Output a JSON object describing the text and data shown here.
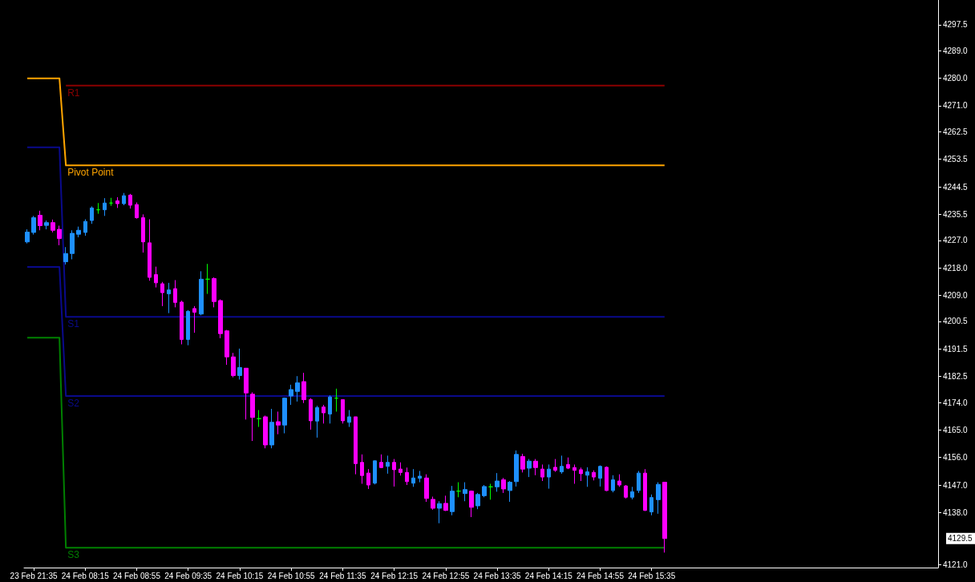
{
  "chart_data": {
    "type": "candlestick",
    "categories": [
      null,
      "23 Feb 21:35",
      null,
      null,
      null,
      null,
      null,
      null,
      null,
      "24 Feb 08:15",
      null,
      null,
      null,
      null,
      null,
      null,
      null,
      "24 Feb 08:55",
      null,
      null,
      null,
      null,
      null,
      null,
      null,
      "24 Feb 09:35",
      null,
      null,
      null,
      null,
      null,
      null,
      null,
      "24 Feb 10:15",
      null,
      null,
      null,
      null,
      null,
      null,
      null,
      "24 Feb 10:55",
      null,
      null,
      null,
      null,
      null,
      null,
      null,
      "24 Feb 11:35",
      null,
      null,
      null,
      null,
      null,
      null,
      null,
      "24 Feb 12:15",
      null,
      null,
      null,
      null,
      null,
      null,
      null,
      "24 Feb 12:55",
      null,
      null,
      null,
      null,
      null,
      null,
      null,
      "24 Feb 13:35",
      null,
      null,
      null,
      null,
      null,
      null,
      null,
      "24 Feb 14:15",
      null,
      null,
      null,
      null,
      null,
      null,
      null,
      "24 Feb 14:55",
      null,
      null,
      null,
      null,
      null,
      null,
      null,
      "24 Feb 15:35",
      null,
      null
    ],
    "ohlc": [
      [
        4226.5,
        4230.6,
        4226.0,
        4229.7
      ],
      [
        4229.6,
        4235.0,
        4228.9,
        4234.4
      ],
      [
        4235.2,
        4236.7,
        4230.3,
        4231.8
      ],
      [
        4231.9,
        4233.5,
        4230.6,
        4232.8
      ],
      [
        4232.8,
        4233.8,
        4229.6,
        4230.3
      ],
      [
        4230.6,
        4231.8,
        4225.4,
        4227.6
      ],
      [
        4220.0,
        4224.8,
        4219.1,
        4222.7
      ],
      [
        4222.7,
        4230.3,
        4220.8,
        4229.3
      ],
      [
        4229.0,
        4231.5,
        4228.0,
        4230.3
      ],
      [
        4229.6,
        4233.9,
        4228.5,
        4233.2
      ],
      [
        4233.5,
        4238.1,
        4232.4,
        4237.6
      ],
      [
        4237.0,
        4239.2,
        4235.7,
        4237.0
      ],
      [
        4237.0,
        4240.8,
        4235.0,
        4239.2
      ],
      [
        4239.2,
        4240.9,
        4238.3,
        4239.2
      ],
      [
        4239.9,
        4241.1,
        4237.6,
        4239.0
      ],
      [
        4239.0,
        4242.5,
        4238.5,
        4241.6
      ],
      [
        4241.8,
        4242.2,
        4237.4,
        4238.5
      ],
      [
        4238.7,
        4239.4,
        4234.1,
        4234.4
      ],
      [
        4234.4,
        4235.5,
        4223.0,
        4226.5
      ],
      [
        4226.2,
        4233.9,
        4213.8,
        4214.9
      ],
      [
        4215.8,
        4218.4,
        4211.6,
        4213.1
      ],
      [
        4212.8,
        4213.4,
        4205.5,
        4209.9
      ],
      [
        4209.5,
        4213.1,
        4203.2,
        4210.8
      ],
      [
        4211.2,
        4214.0,
        4205.1,
        4206.7
      ],
      [
        4206.8,
        4207.3,
        4193.0,
        4194.6
      ],
      [
        4194.6,
        4204.2,
        4192.7,
        4203.8
      ],
      [
        4204.7,
        4205.5,
        4196.8,
        4203.5
      ],
      [
        4202.9,
        4216.9,
        4202.5,
        4214.3
      ],
      [
        4214.3,
        4219.3,
        4209.5,
        4214.3
      ],
      [
        4214.5,
        4214.9,
        4205.1,
        4207.0
      ],
      [
        4207.3,
        4207.7,
        4195.0,
        4196.5
      ],
      [
        4197.4,
        4197.7,
        4186.3,
        4188.9
      ],
      [
        4188.9,
        4190.2,
        4182.2,
        4182.8
      ],
      [
        4182.8,
        4191.6,
        4181.5,
        4185.4
      ],
      [
        4185.2,
        4185.2,
        4168.4,
        4177.1
      ],
      [
        4176.7,
        4177.3,
        4161.4,
        4169.1
      ],
      [
        4168.7,
        4171.5,
        4166.0,
        4168.7
      ],
      [
        4169.3,
        4169.7,
        4159.0,
        4160.1
      ],
      [
        4160.1,
        4171.9,
        4159.0,
        4167.5
      ],
      [
        4167.7,
        4171.0,
        4163.6,
        4166.6
      ],
      [
        4166.6,
        4175.6,
        4163.9,
        4175.4
      ],
      [
        4176.1,
        4179.8,
        4173.2,
        4178.2
      ],
      [
        4177.6,
        4182.6,
        4174.3,
        4180.4
      ],
      [
        4180.8,
        4183.7,
        4173.8,
        4174.9
      ],
      [
        4174.9,
        4175.4,
        4165.1,
        4168.0
      ],
      [
        4167.9,
        4172.9,
        4162.5,
        4172.3
      ],
      [
        4172.5,
        4173.2,
        4167.1,
        4170.6
      ],
      [
        4170.2,
        4176.3,
        4167.1,
        4175.8
      ],
      [
        4175.4,
        4178.5,
        4171.0,
        4175.4
      ],
      [
        4174.9,
        4174.9,
        4167.1,
        4168.0
      ],
      [
        4167.5,
        4171.5,
        4166.0,
        4169.3
      ],
      [
        4169.3,
        4169.3,
        4150.5,
        4154.0
      ],
      [
        4154.4,
        4157.0,
        4147.4,
        4150.1
      ],
      [
        4150.9,
        4152.2,
        4145.7,
        4147.0
      ],
      [
        4147.6,
        4155.0,
        4147.2,
        4154.9
      ],
      [
        4154.4,
        4157.0,
        4152.5,
        4152.7
      ],
      [
        4153.1,
        4156.6,
        4150.7,
        4154.4
      ],
      [
        4154.4,
        4155.5,
        4146.5,
        4152.0
      ],
      [
        4152.2,
        4154.4,
        4150.1,
        4151.1
      ],
      [
        4151.1,
        4152.7,
        4147.0,
        4148.1
      ],
      [
        4147.6,
        4152.2,
        4146.4,
        4149.3
      ],
      [
        4149.2,
        4151.6,
        4147.9,
        4149.9
      ],
      [
        4149.3,
        4150.5,
        4141.5,
        4142.6
      ],
      [
        4142.3,
        4143.2,
        4138.9,
        4139.4
      ],
      [
        4139.4,
        4141.7,
        4134.5,
        4140.9
      ],
      [
        4141.0,
        4143.5,
        4138.5,
        4138.7
      ],
      [
        4138.3,
        4146.7,
        4137.1,
        4145.0
      ],
      [
        4145.0,
        4147.9,
        4143.0,
        4145.0
      ],
      [
        4144.2,
        4147.9,
        4141.7,
        4145.5
      ],
      [
        4145.0,
        4145.2,
        4136.5,
        4139.7
      ],
      [
        4140.2,
        4144.4,
        4139.1,
        4143.9
      ],
      [
        4143.5,
        4147.0,
        4143.0,
        4146.5
      ],
      [
        4146.4,
        4147.4,
        4142.2,
        4146.4
      ],
      [
        4146.4,
        4150.9,
        4144.8,
        4148.3
      ],
      [
        4148.7,
        4149.3,
        4144.4,
        4145.7
      ],
      [
        4145.2,
        4148.3,
        4141.5,
        4147.9
      ],
      [
        4148.1,
        4158.3,
        4146.5,
        4157.0
      ],
      [
        4156.3,
        4157.2,
        4151.1,
        4152.2
      ],
      [
        4152.5,
        4155.5,
        4149.6,
        4154.8
      ],
      [
        4154.8,
        4155.5,
        4150.2,
        4152.7
      ],
      [
        4152.2,
        4153.7,
        4148.3,
        4149.6
      ],
      [
        4149.6,
        4153.7,
        4145.8,
        4152.2
      ],
      [
        4152.8,
        4155.5,
        4151.3,
        4151.8
      ],
      [
        4151.3,
        4156.6,
        4150.7,
        4153.1
      ],
      [
        4153.7,
        4156.0,
        4152.2,
        4152.5
      ],
      [
        4152.7,
        4153.7,
        4147.4,
        4151.8
      ],
      [
        4152.0,
        4152.7,
        4148.3,
        4150.7
      ],
      [
        4150.2,
        4152.8,
        4146.4,
        4151.3
      ],
      [
        4151.1,
        4151.8,
        4148.5,
        4149.6
      ],
      [
        4149.2,
        4153.4,
        4146.5,
        4153.1
      ],
      [
        4152.8,
        4153.1,
        4145.0,
        4145.2
      ],
      [
        4145.2,
        4150.2,
        4144.6,
        4148.7
      ],
      [
        4148.3,
        4150.5,
        4146.4,
        4147.0
      ],
      [
        4146.7,
        4147.0,
        4142.6,
        4143.0
      ],
      [
        4143.0,
        4146.4,
        4142.3,
        4144.8
      ],
      [
        4145.2,
        4151.6,
        4144.4,
        4150.9
      ],
      [
        4150.9,
        4152.2,
        4138.5,
        4138.7
      ],
      [
        4138.2,
        4143.9,
        4137.1,
        4142.9
      ],
      [
        4142.2,
        4147.9,
        4137.6,
        4147.2
      ],
      [
        4147.9,
        4147.9,
        4124.9,
        4129.5
      ]
    ],
    "colors": [
      "#1e90ff",
      "#1e90ff",
      "#ff00ff",
      "#1e90ff",
      "#ff00ff",
      "#ff00ff",
      "#1e90ff",
      "#1e90ff",
      "#1e90ff",
      "#1e90ff",
      "#1e90ff",
      "#00ff00",
      "#1e90ff",
      "#00ff00",
      "#ff00ff",
      "#1e90ff",
      "#ff00ff",
      "#ff00ff",
      "#ff00ff",
      "#ff00ff",
      "#ff00ff",
      "#ff00ff",
      "#1e90ff",
      "#ff00ff",
      "#ff00ff",
      "#1e90ff",
      "#ff00ff",
      "#1e90ff",
      "#00ff00",
      "#ff00ff",
      "#ff00ff",
      "#ff00ff",
      "#ff00ff",
      "#1e90ff",
      "#ff00ff",
      "#ff00ff",
      "#00ff00",
      "#ff00ff",
      "#1e90ff",
      "#ff00ff",
      "#1e90ff",
      "#1e90ff",
      "#1e90ff",
      "#ff00ff",
      "#ff00ff",
      "#1e90ff",
      "#ff00ff",
      "#1e90ff",
      "#00ff00",
      "#ff00ff",
      "#1e90ff",
      "#ff00ff",
      "#ff00ff",
      "#ff00ff",
      "#1e90ff",
      "#ff00ff",
      "#1e90ff",
      "#ff00ff",
      "#ff00ff",
      "#ff00ff",
      "#1e90ff",
      "#1e90ff",
      "#ff00ff",
      "#ff00ff",
      "#1e90ff",
      "#ff00ff",
      "#1e90ff",
      "#00ff00",
      "#1e90ff",
      "#ff00ff",
      "#1e90ff",
      "#1e90ff",
      "#00ff00",
      "#1e90ff",
      "#ff00ff",
      "#1e90ff",
      "#1e90ff",
      "#ff00ff",
      "#1e90ff",
      "#ff00ff",
      "#ff00ff",
      "#1e90ff",
      "#ff00ff",
      "#1e90ff",
      "#ff00ff",
      "#ff00ff",
      "#ff00ff",
      "#1e90ff",
      "#ff00ff",
      "#1e90ff",
      "#ff00ff",
      "#1e90ff",
      "#ff00ff",
      "#ff00ff",
      "#1e90ff",
      "#1e90ff",
      "#ff00ff",
      "#1e90ff",
      "#1e90ff",
      "#ff00ff"
    ],
    "series": [
      {
        "type": "line",
        "name": "R1",
        "color": "#8b0000",
        "values": [
          null,
          null,
          null,
          null,
          null,
          null,
          4277.6,
          4277.6,
          4277.6,
          4277.6,
          4277.6,
          4277.6,
          4277.6,
          4277.6,
          4277.6,
          4277.6,
          4277.6,
          4277.6,
          4277.6,
          4277.6,
          4277.6,
          4277.6,
          4277.6,
          4277.6,
          4277.6,
          4277.6,
          4277.6,
          4277.6,
          4277.6,
          4277.6,
          4277.6,
          4277.6,
          4277.6,
          4277.6,
          4277.6,
          4277.6,
          4277.6,
          4277.6,
          4277.6,
          4277.6,
          4277.6,
          4277.6,
          4277.6,
          4277.6,
          4277.6,
          4277.6,
          4277.6,
          4277.6,
          4277.6,
          4277.6,
          4277.6,
          4277.6,
          4277.6,
          4277.6,
          4277.6,
          4277.6,
          4277.6,
          4277.6,
          4277.6,
          4277.6,
          4277.6,
          4277.6,
          4277.6,
          4277.6,
          4277.6,
          4277.6,
          4277.6,
          4277.6,
          4277.6,
          4277.6,
          4277.6,
          4277.6,
          4277.6,
          4277.6,
          4277.6,
          4277.6,
          4277.6,
          4277.6,
          4277.6,
          4277.6,
          4277.6,
          4277.6,
          4277.6,
          4277.6,
          4277.6,
          4277.6,
          4277.6,
          4277.6,
          4277.6,
          4277.6,
          4277.6,
          4277.6,
          4277.6,
          4277.6,
          4277.6,
          4277.6,
          4277.6,
          4277.6,
          4277.6,
          4277.6
        ]
      },
      {
        "type": "line",
        "name": "Pivot Point",
        "color": "#ffa500",
        "values": [
          4280.0,
          4280.0,
          4280.0,
          4280.0,
          4280.0,
          4280.0,
          4251.5,
          4251.5,
          4251.5,
          4251.5,
          4251.5,
          4251.5,
          4251.5,
          4251.5,
          4251.5,
          4251.5,
          4251.5,
          4251.5,
          4251.5,
          4251.5,
          4251.5,
          4251.5,
          4251.5,
          4251.5,
          4251.5,
          4251.5,
          4251.5,
          4251.5,
          4251.5,
          4251.5,
          4251.5,
          4251.5,
          4251.5,
          4251.5,
          4251.5,
          4251.5,
          4251.5,
          4251.5,
          4251.5,
          4251.5,
          4251.5,
          4251.5,
          4251.5,
          4251.5,
          4251.5,
          4251.5,
          4251.5,
          4251.5,
          4251.5,
          4251.5,
          4251.5,
          4251.5,
          4251.5,
          4251.5,
          4251.5,
          4251.5,
          4251.5,
          4251.5,
          4251.5,
          4251.5,
          4251.5,
          4251.5,
          4251.5,
          4251.5,
          4251.5,
          4251.5,
          4251.5,
          4251.5,
          4251.5,
          4251.5,
          4251.5,
          4251.5,
          4251.5,
          4251.5,
          4251.5,
          4251.5,
          4251.5,
          4251.5,
          4251.5,
          4251.5,
          4251.5,
          4251.5,
          4251.5,
          4251.5,
          4251.5,
          4251.5,
          4251.5,
          4251.5,
          4251.5,
          4251.5,
          4251.5,
          4251.5,
          4251.5,
          4251.5,
          4251.5,
          4251.5,
          4251.5,
          4251.5,
          4251.5,
          4251.5
        ]
      },
      {
        "type": "line",
        "name": "S1",
        "color": "#0a0a8c",
        "values": [
          4257.4,
          4257.4,
          4257.4,
          4257.4,
          4257.4,
          4257.4,
          4202.0,
          4202.0,
          4202.0,
          4202.0,
          4202.0,
          4202.0,
          4202.0,
          4202.0,
          4202.0,
          4202.0,
          4202.0,
          4202.0,
          4202.0,
          4202.0,
          4202.0,
          4202.0,
          4202.0,
          4202.0,
          4202.0,
          4202.0,
          4202.0,
          4202.0,
          4202.0,
          4202.0,
          4202.0,
          4202.0,
          4202.0,
          4202.0,
          4202.0,
          4202.0,
          4202.0,
          4202.0,
          4202.0,
          4202.0,
          4202.0,
          4202.0,
          4202.0,
          4202.0,
          4202.0,
          4202.0,
          4202.0,
          4202.0,
          4202.0,
          4202.0,
          4202.0,
          4202.0,
          4202.0,
          4202.0,
          4202.0,
          4202.0,
          4202.0,
          4202.0,
          4202.0,
          4202.0,
          4202.0,
          4202.0,
          4202.0,
          4202.0,
          4202.0,
          4202.0,
          4202.0,
          4202.0,
          4202.0,
          4202.0,
          4202.0,
          4202.0,
          4202.0,
          4202.0,
          4202.0,
          4202.0,
          4202.0,
          4202.0,
          4202.0,
          4202.0,
          4202.0,
          4202.0,
          4202.0,
          4202.0,
          4202.0,
          4202.0,
          4202.0,
          4202.0,
          4202.0,
          4202.0,
          4202.0,
          4202.0,
          4202.0,
          4202.0,
          4202.0,
          4202.0,
          4202.0,
          4202.0,
          4202.0,
          4202.0
        ]
      },
      {
        "type": "line",
        "name": "S2",
        "color": "#0a0a8c",
        "values": [
          4218.3,
          4218.3,
          4218.3,
          4218.3,
          4218.3,
          4218.3,
          4176.1,
          4176.1,
          4176.1,
          4176.1,
          4176.1,
          4176.1,
          4176.1,
          4176.1,
          4176.1,
          4176.1,
          4176.1,
          4176.1,
          4176.1,
          4176.1,
          4176.1,
          4176.1,
          4176.1,
          4176.1,
          4176.1,
          4176.1,
          4176.1,
          4176.1,
          4176.1,
          4176.1,
          4176.1,
          4176.1,
          4176.1,
          4176.1,
          4176.1,
          4176.1,
          4176.1,
          4176.1,
          4176.1,
          4176.1,
          4176.1,
          4176.1,
          4176.1,
          4176.1,
          4176.1,
          4176.1,
          4176.1,
          4176.1,
          4176.1,
          4176.1,
          4176.1,
          4176.1,
          4176.1,
          4176.1,
          4176.1,
          4176.1,
          4176.1,
          4176.1,
          4176.1,
          4176.1,
          4176.1,
          4176.1,
          4176.1,
          4176.1,
          4176.1,
          4176.1,
          4176.1,
          4176.1,
          4176.1,
          4176.1,
          4176.1,
          4176.1,
          4176.1,
          4176.1,
          4176.1,
          4176.1,
          4176.1,
          4176.1,
          4176.1,
          4176.1,
          4176.1,
          4176.1,
          4176.1,
          4176.1,
          4176.1,
          4176.1,
          4176.1,
          4176.1,
          4176.1,
          4176.1,
          4176.1,
          4176.1,
          4176.1,
          4176.1,
          4176.1,
          4176.1,
          4176.1,
          4176.1,
          4176.1,
          4176.1
        ]
      },
      {
        "type": "line",
        "name": "S3",
        "color": "#008000",
        "values": [
          4195.2,
          4195.2,
          4195.2,
          4195.2,
          4195.2,
          4195.2,
          4126.5,
          4126.5,
          4126.5,
          4126.5,
          4126.5,
          4126.5,
          4126.5,
          4126.5,
          4126.5,
          4126.5,
          4126.5,
          4126.5,
          4126.5,
          4126.5,
          4126.5,
          4126.5,
          4126.5,
          4126.5,
          4126.5,
          4126.5,
          4126.5,
          4126.5,
          4126.5,
          4126.5,
          4126.5,
          4126.5,
          4126.5,
          4126.5,
          4126.5,
          4126.5,
          4126.5,
          4126.5,
          4126.5,
          4126.5,
          4126.5,
          4126.5,
          4126.5,
          4126.5,
          4126.5,
          4126.5,
          4126.5,
          4126.5,
          4126.5,
          4126.5,
          4126.5,
          4126.5,
          4126.5,
          4126.5,
          4126.5,
          4126.5,
          4126.5,
          4126.5,
          4126.5,
          4126.5,
          4126.5,
          4126.5,
          4126.5,
          4126.5,
          4126.5,
          4126.5,
          4126.5,
          4126.5,
          4126.5,
          4126.5,
          4126.5,
          4126.5,
          4126.5,
          4126.5,
          4126.5,
          4126.5,
          4126.5,
          4126.5,
          4126.5,
          4126.5,
          4126.5,
          4126.5,
          4126.5,
          4126.5,
          4126.5,
          4126.5,
          4126.5,
          4126.5,
          4126.5,
          4126.5,
          4126.5,
          4126.5,
          4126.5,
          4126.5,
          4126.5,
          4126.5,
          4126.5,
          4126.5,
          4126.5,
          4126.5
        ]
      }
    ],
    "ylim": [
      4120,
      4305.6
    ],
    "yticks": [
      {
        "value": 4297.5,
        "label": "4297.5"
      },
      {
        "value": 4289,
        "label": "4289.0"
      },
      {
        "value": 4280,
        "label": "4280.0"
      },
      {
        "value": 4271,
        "label": "4271.0"
      },
      {
        "value": 4262.5,
        "label": "4262.5"
      },
      {
        "value": 4253.5,
        "label": "4253.5"
      },
      {
        "value": 4244.5,
        "label": "4244.5"
      },
      {
        "value": 4235.5,
        "label": "4235.5"
      },
      {
        "value": 4227,
        "label": "4227.0"
      },
      {
        "value": 4218,
        "label": "4218.0"
      },
      {
        "value": 4209,
        "label": "4209.0"
      },
      {
        "value": 4200.5,
        "label": "4200.5"
      },
      {
        "value": 4191.5,
        "label": "4191.5"
      },
      {
        "value": 4182.5,
        "label": "4182.5"
      },
      {
        "value": 4174,
        "label": "4174.0"
      },
      {
        "value": 4165,
        "label": "4165.0"
      },
      {
        "value": 4156,
        "label": "4156.0"
      },
      {
        "value": 4147,
        "label": "4147.0"
      },
      {
        "value": 4138,
        "label": "4138.0"
      },
      {
        "value": 4121,
        "label": "4121.0"
      }
    ],
    "annotations": [
      "4129.5"
    ]
  }
}
